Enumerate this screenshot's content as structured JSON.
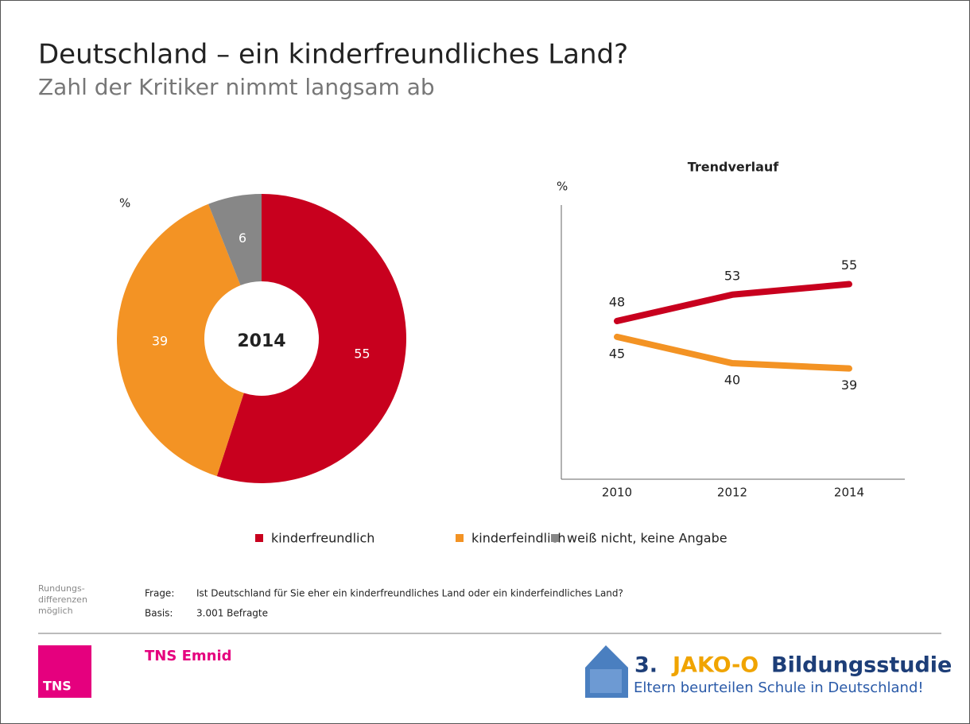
{
  "title": "Deutschland – ein kinderfreundliches Land?",
  "subtitle": "Zahl der Kritiker nimmt langsam ab",
  "chart_data": [
    {
      "type": "pie",
      "unit_label": "%",
      "center_label": "2014",
      "categories": [
        "kinderfreundlich",
        "kinderfeindlich",
        "weiß nicht, keine Angabe"
      ],
      "values": [
        55,
        39,
        6
      ],
      "colors": [
        "#c8001e",
        "#f39324",
        "#878787"
      ]
    },
    {
      "type": "line",
      "title": "Trendverlauf",
      "y_label": "%",
      "x": [
        "2010",
        "2012",
        "2014"
      ],
      "ylim": [
        18,
        70
      ],
      "series": [
        {
          "name": "kinderfreundlich",
          "color": "#c8001e",
          "values": [
            48,
            53,
            55
          ]
        },
        {
          "name": "kinderfeindlich",
          "color": "#f39324",
          "values": [
            45,
            40,
            39
          ]
        }
      ]
    }
  ],
  "footer": {
    "note": [
      "Rundungs-",
      "differenzen",
      "möglich"
    ],
    "question_label": "Frage:",
    "question": "Ist Deutschland für Sie eher ein kinderfreundliches Land oder ein kinderfeindliches Land?",
    "base_label": "Basis:",
    "base": "3.001 Befragte",
    "company": "TNS Emnid",
    "logo_text": "TNS",
    "study_number": "3.",
    "study_brand": "JAKO-O",
    "study_name": "Bildungsstudie",
    "study_tagline": "Eltern beurteilen Schule in Deutschland!"
  }
}
